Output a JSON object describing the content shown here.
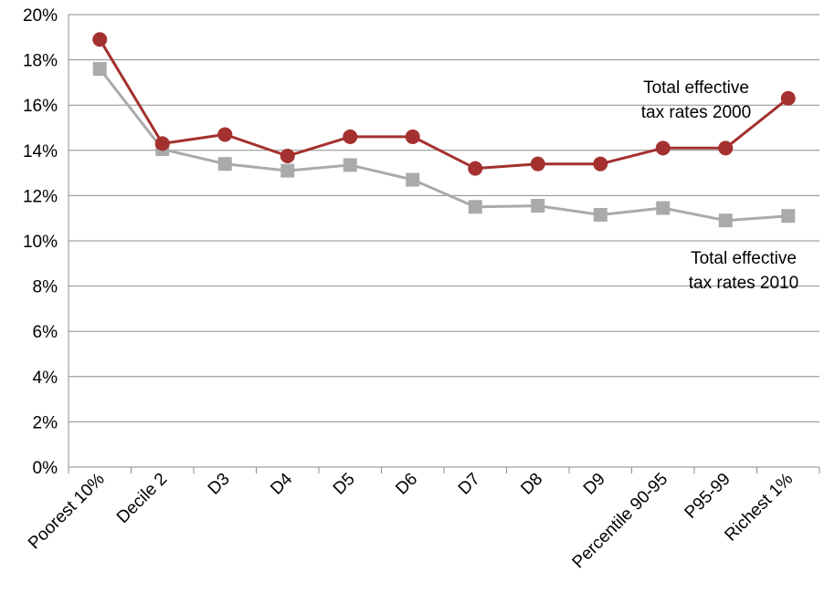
{
  "chart_data": {
    "type": "line",
    "title": "",
    "xlabel": "",
    "ylabel": "",
    "ylim": [
      0,
      20
    ],
    "yticks": [
      "0%",
      "2%",
      "4%",
      "6%",
      "8%",
      "10%",
      "12%",
      "14%",
      "16%",
      "18%",
      "20%"
    ],
    "grid": "horizontal",
    "categories": [
      "Poorest 10%",
      "Decile 2",
      "D3",
      "D4",
      "D5",
      "D6",
      "D7",
      "D8",
      "D9",
      "Percentile 90-95",
      "P95-99",
      "Richest 1%"
    ],
    "series": [
      {
        "name": "Total effective tax rates 2000",
        "color": "#a3312f",
        "marker": "circle",
        "values": [
          18.9,
          14.3,
          14.7,
          13.75,
          14.6,
          14.6,
          13.2,
          13.4,
          13.4,
          14.1,
          14.1,
          16.3
        ]
      },
      {
        "name": "Total effective tax rates 2010",
        "color": "#aaaaaa",
        "marker": "square",
        "values": [
          17.6,
          14.05,
          13.4,
          13.1,
          13.35,
          12.7,
          11.5,
          11.55,
          11.15,
          11.45,
          10.9,
          11.1
        ]
      }
    ],
    "annotations": [
      {
        "lines": [
          "Total effective",
          "tax rates 2000"
        ],
        "series": 0
      },
      {
        "lines": [
          "Total effective",
          "tax rates 2010"
        ],
        "series": 1
      }
    ]
  }
}
